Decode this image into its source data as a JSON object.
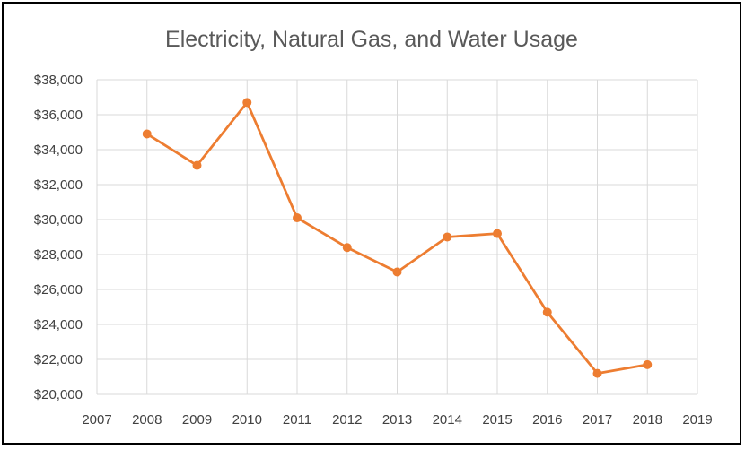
{
  "chart_data": {
    "type": "line",
    "title": "Electricity, Natural Gas, and Water Usage",
    "xlabel": "",
    "ylabel": "",
    "xlim": [
      2007,
      2019
    ],
    "ylim": [
      20000,
      38000
    ],
    "x_ticks": [
      "2007",
      "2008",
      "2009",
      "2010",
      "2011",
      "2012",
      "2013",
      "2014",
      "2015",
      "2016",
      "2017",
      "2018",
      "2019"
    ],
    "y_ticks": [
      "$20,000",
      "$22,000",
      "$24,000",
      "$26,000",
      "$28,000",
      "$30,000",
      "$32,000",
      "$34,000",
      "$36,000",
      "$38,000"
    ],
    "grid": true,
    "legend": "none",
    "series": [
      {
        "color": "#ED7D31",
        "x": [
          2008,
          2009,
          2010,
          2011,
          2012,
          2013,
          2014,
          2015,
          2016,
          2017,
          2018
        ],
        "y": [
          34900,
          33100,
          36700,
          30100,
          28400,
          27000,
          29000,
          29200,
          24700,
          21200,
          21700
        ]
      }
    ]
  }
}
